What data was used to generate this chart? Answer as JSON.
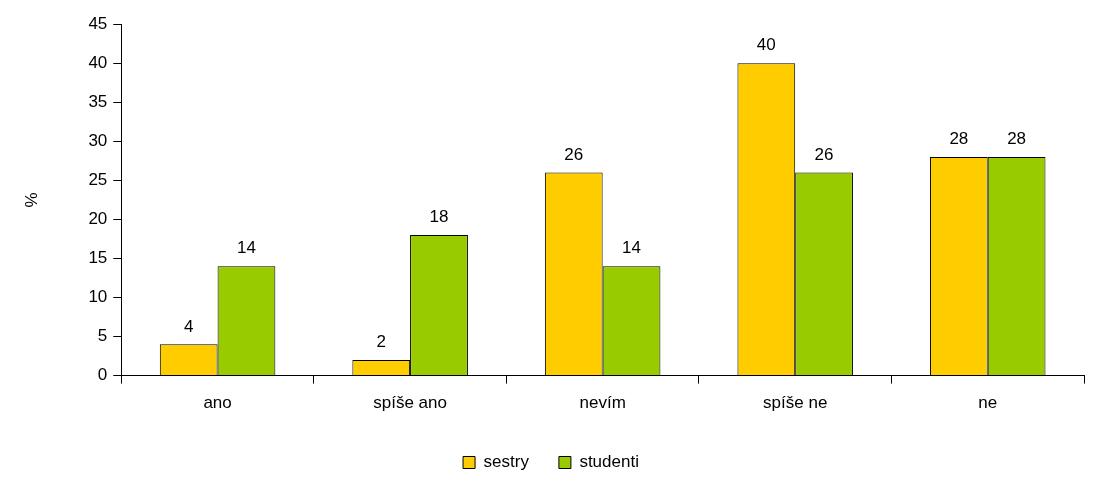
{
  "chart_data": {
    "type": "bar",
    "ylabel": "%",
    "categories": [
      "ano",
      "spíše ano",
      "nevím",
      "spíše ne",
      "ne"
    ],
    "series": [
      {
        "name": "sestry",
        "color": "#ffcc00",
        "values": [
          4,
          2,
          26,
          40,
          28
        ]
      },
      {
        "name": "studenti",
        "color": "#99cc00",
        "values": [
          14,
          18,
          14,
          26,
          28
        ]
      }
    ],
    "ylim": [
      0,
      45
    ],
    "yticks": [
      0,
      5,
      10,
      15,
      20,
      25,
      30,
      35,
      40,
      45
    ],
    "grid": false,
    "legend": "bottom",
    "data_labels": true
  }
}
